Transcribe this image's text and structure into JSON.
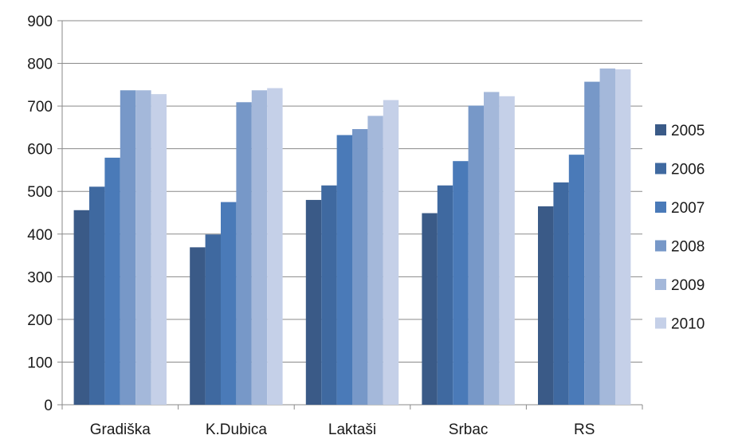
{
  "chart_data": {
    "type": "bar",
    "categories": [
      "Gradiška",
      "K.Dubica",
      "Laktaši",
      "Srbac",
      "RS"
    ],
    "series": [
      {
        "name": "2005",
        "values": [
          456,
          369,
          480,
          449,
          465
        ]
      },
      {
        "name": "2006",
        "values": [
          511,
          399,
          514,
          514,
          521
        ]
      },
      {
        "name": "2007",
        "values": [
          579,
          475,
          632,
          571,
          586
        ]
      },
      {
        "name": "2008",
        "values": [
          737,
          709,
          646,
          701,
          757
        ]
      },
      {
        "name": "2009",
        "values": [
          737,
          737,
          677,
          733,
          788
        ]
      },
      {
        "name": "2010",
        "values": [
          728,
          742,
          714,
          723,
          786
        ]
      }
    ],
    "ylim": [
      0,
      900
    ],
    "yticks": [
      "0",
      "100",
      "200",
      "300",
      "400",
      "500",
      "600",
      "700",
      "800",
      "900"
    ],
    "grid": true,
    "legend_position": "right",
    "colors": [
      "#3a5a87",
      "#3f69a0",
      "#4a7ab8",
      "#7798c8",
      "#a4b8da",
      "#c5d0e8"
    ]
  }
}
